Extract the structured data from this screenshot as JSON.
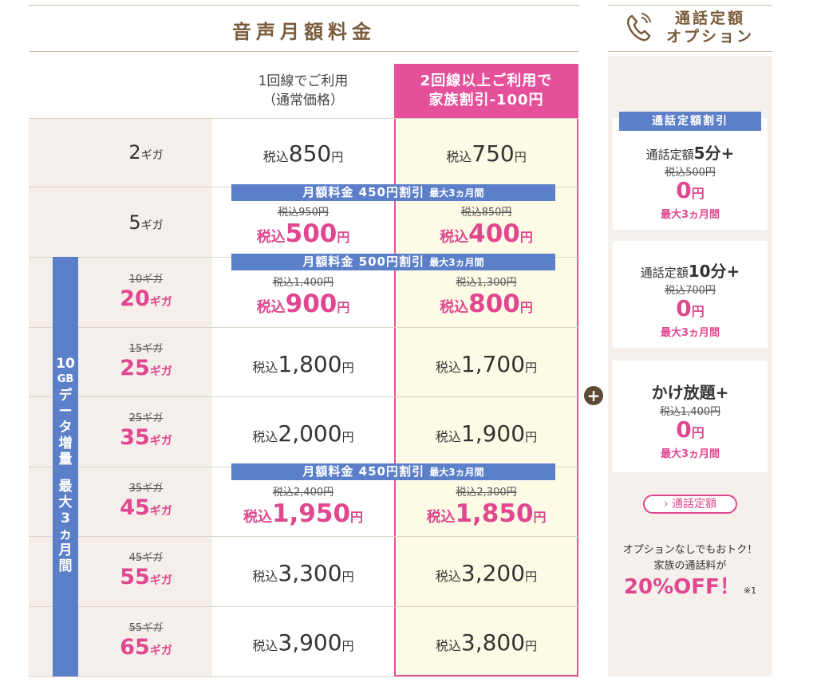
{
  "header": {
    "title": "音声月額料金",
    "option_title_1": "通話定額",
    "option_title_2": "オプション"
  },
  "columns": {
    "single_1": "1回線でご利用",
    "single_2": "（通常価格）",
    "family_1": "2回線以上ご利用で",
    "family_2": "家族割引-100円"
  },
  "side": {
    "label": [
      "10",
      "GB",
      "デ",
      "ー",
      "タ",
      "増",
      "量",
      "",
      "最",
      "大",
      "3",
      "ヵ",
      "月",
      "間"
    ]
  },
  "banners": [
    {
      "main": "月額料金 450円割引",
      "sub": "最大3ヵ月間"
    },
    {
      "main": "月額料金 500円割引",
      "sub": "最大3ヵ月間"
    },
    {
      "main": "月額料金 450円割引",
      "sub": "最大3ヵ月間"
    }
  ],
  "rows": [
    {
      "old_plan": "",
      "plan_num": "2",
      "plan_unit": "ギガ",
      "pink": false,
      "single_old": "",
      "single_pre": "税込",
      "single_num": "850",
      "single_yen": "円",
      "family_old": "",
      "family_pre": "税込",
      "family_num": "750",
      "family_yen": "円"
    },
    {
      "old_plan": "",
      "plan_num": "5",
      "plan_unit": "ギガ",
      "pink": false,
      "single_old": "税込950円",
      "single_pre": "税込",
      "single_num": "500",
      "single_yen": "円",
      "family_old": "税込850円",
      "family_pre": "税込",
      "family_num": "400",
      "family_yen": "円"
    },
    {
      "old_plan": "10ギガ",
      "plan_num": "20",
      "plan_unit": "ギガ",
      "pink": true,
      "single_old": "税込1,400円",
      "single_pre": "税込",
      "single_num": "900",
      "single_yen": "円",
      "family_old": "税込1,300円",
      "family_pre": "税込",
      "family_num": "800",
      "family_yen": "円"
    },
    {
      "old_plan": "15ギガ",
      "plan_num": "25",
      "plan_unit": "ギガ",
      "pink": true,
      "single_old": "",
      "single_pre": "税込",
      "single_num": "1,800",
      "single_yen": "円",
      "family_old": "",
      "family_pre": "税込",
      "family_num": "1,700",
      "family_yen": "円"
    },
    {
      "old_plan": "25ギガ",
      "plan_num": "35",
      "plan_unit": "ギガ",
      "pink": true,
      "single_old": "",
      "single_pre": "税込",
      "single_num": "2,000",
      "single_yen": "円",
      "family_old": "",
      "family_pre": "税込",
      "family_num": "1,900",
      "family_yen": "円"
    },
    {
      "old_plan": "35ギガ",
      "plan_num": "45",
      "plan_unit": "ギガ",
      "pink": true,
      "single_old": "税込2,400円",
      "single_pre": "税込",
      "single_num": "1,950",
      "single_yen": "円",
      "family_old": "税込2,300円",
      "family_pre": "税込",
      "family_num": "1,850",
      "family_yen": "円"
    },
    {
      "old_plan": "45ギガ",
      "plan_num": "55",
      "plan_unit": "ギガ",
      "pink": true,
      "single_old": "",
      "single_pre": "税込",
      "single_num": "3,300",
      "single_yen": "円",
      "family_old": "",
      "family_pre": "税込",
      "family_num": "3,200",
      "family_yen": "円"
    },
    {
      "old_plan": "55ギガ",
      "plan_num": "65",
      "plan_unit": "ギガ",
      "pink": true,
      "single_old": "",
      "single_pre": "税込",
      "single_num": "3,900",
      "single_yen": "円",
      "family_old": "",
      "family_pre": "税込",
      "family_num": "3,800",
      "family_yen": "円"
    }
  ],
  "options": {
    "tag": "通話定額割引",
    "cards": [
      {
        "name": "通話定額",
        "name_b": "5分+",
        "old": "税込500円",
        "zero": "0",
        "yen": "円",
        "dur": "最大3ヵ月間"
      },
      {
        "name": "通話定額",
        "name_b": "10分+",
        "old": "税込700円",
        "zero": "0",
        "yen": "円",
        "dur": "最大3ヵ月間"
      },
      {
        "name": "",
        "name_b": "かけ放題+",
        "old": "税込1,400円",
        "zero": "0",
        "yen": "円",
        "dur": "最大3ヵ月間"
      }
    ],
    "plus": "+",
    "link_label": "通話定額",
    "note_1": "オプションなしでもおトク！",
    "note_2": "家族の通話料が",
    "note_big": "20%OFF！",
    "note_ref": "※1"
  },
  "colors": {
    "accent_pink": "#e5509a",
    "accent_blue": "#5b7fc9",
    "brown": "#7a5c3c"
  }
}
